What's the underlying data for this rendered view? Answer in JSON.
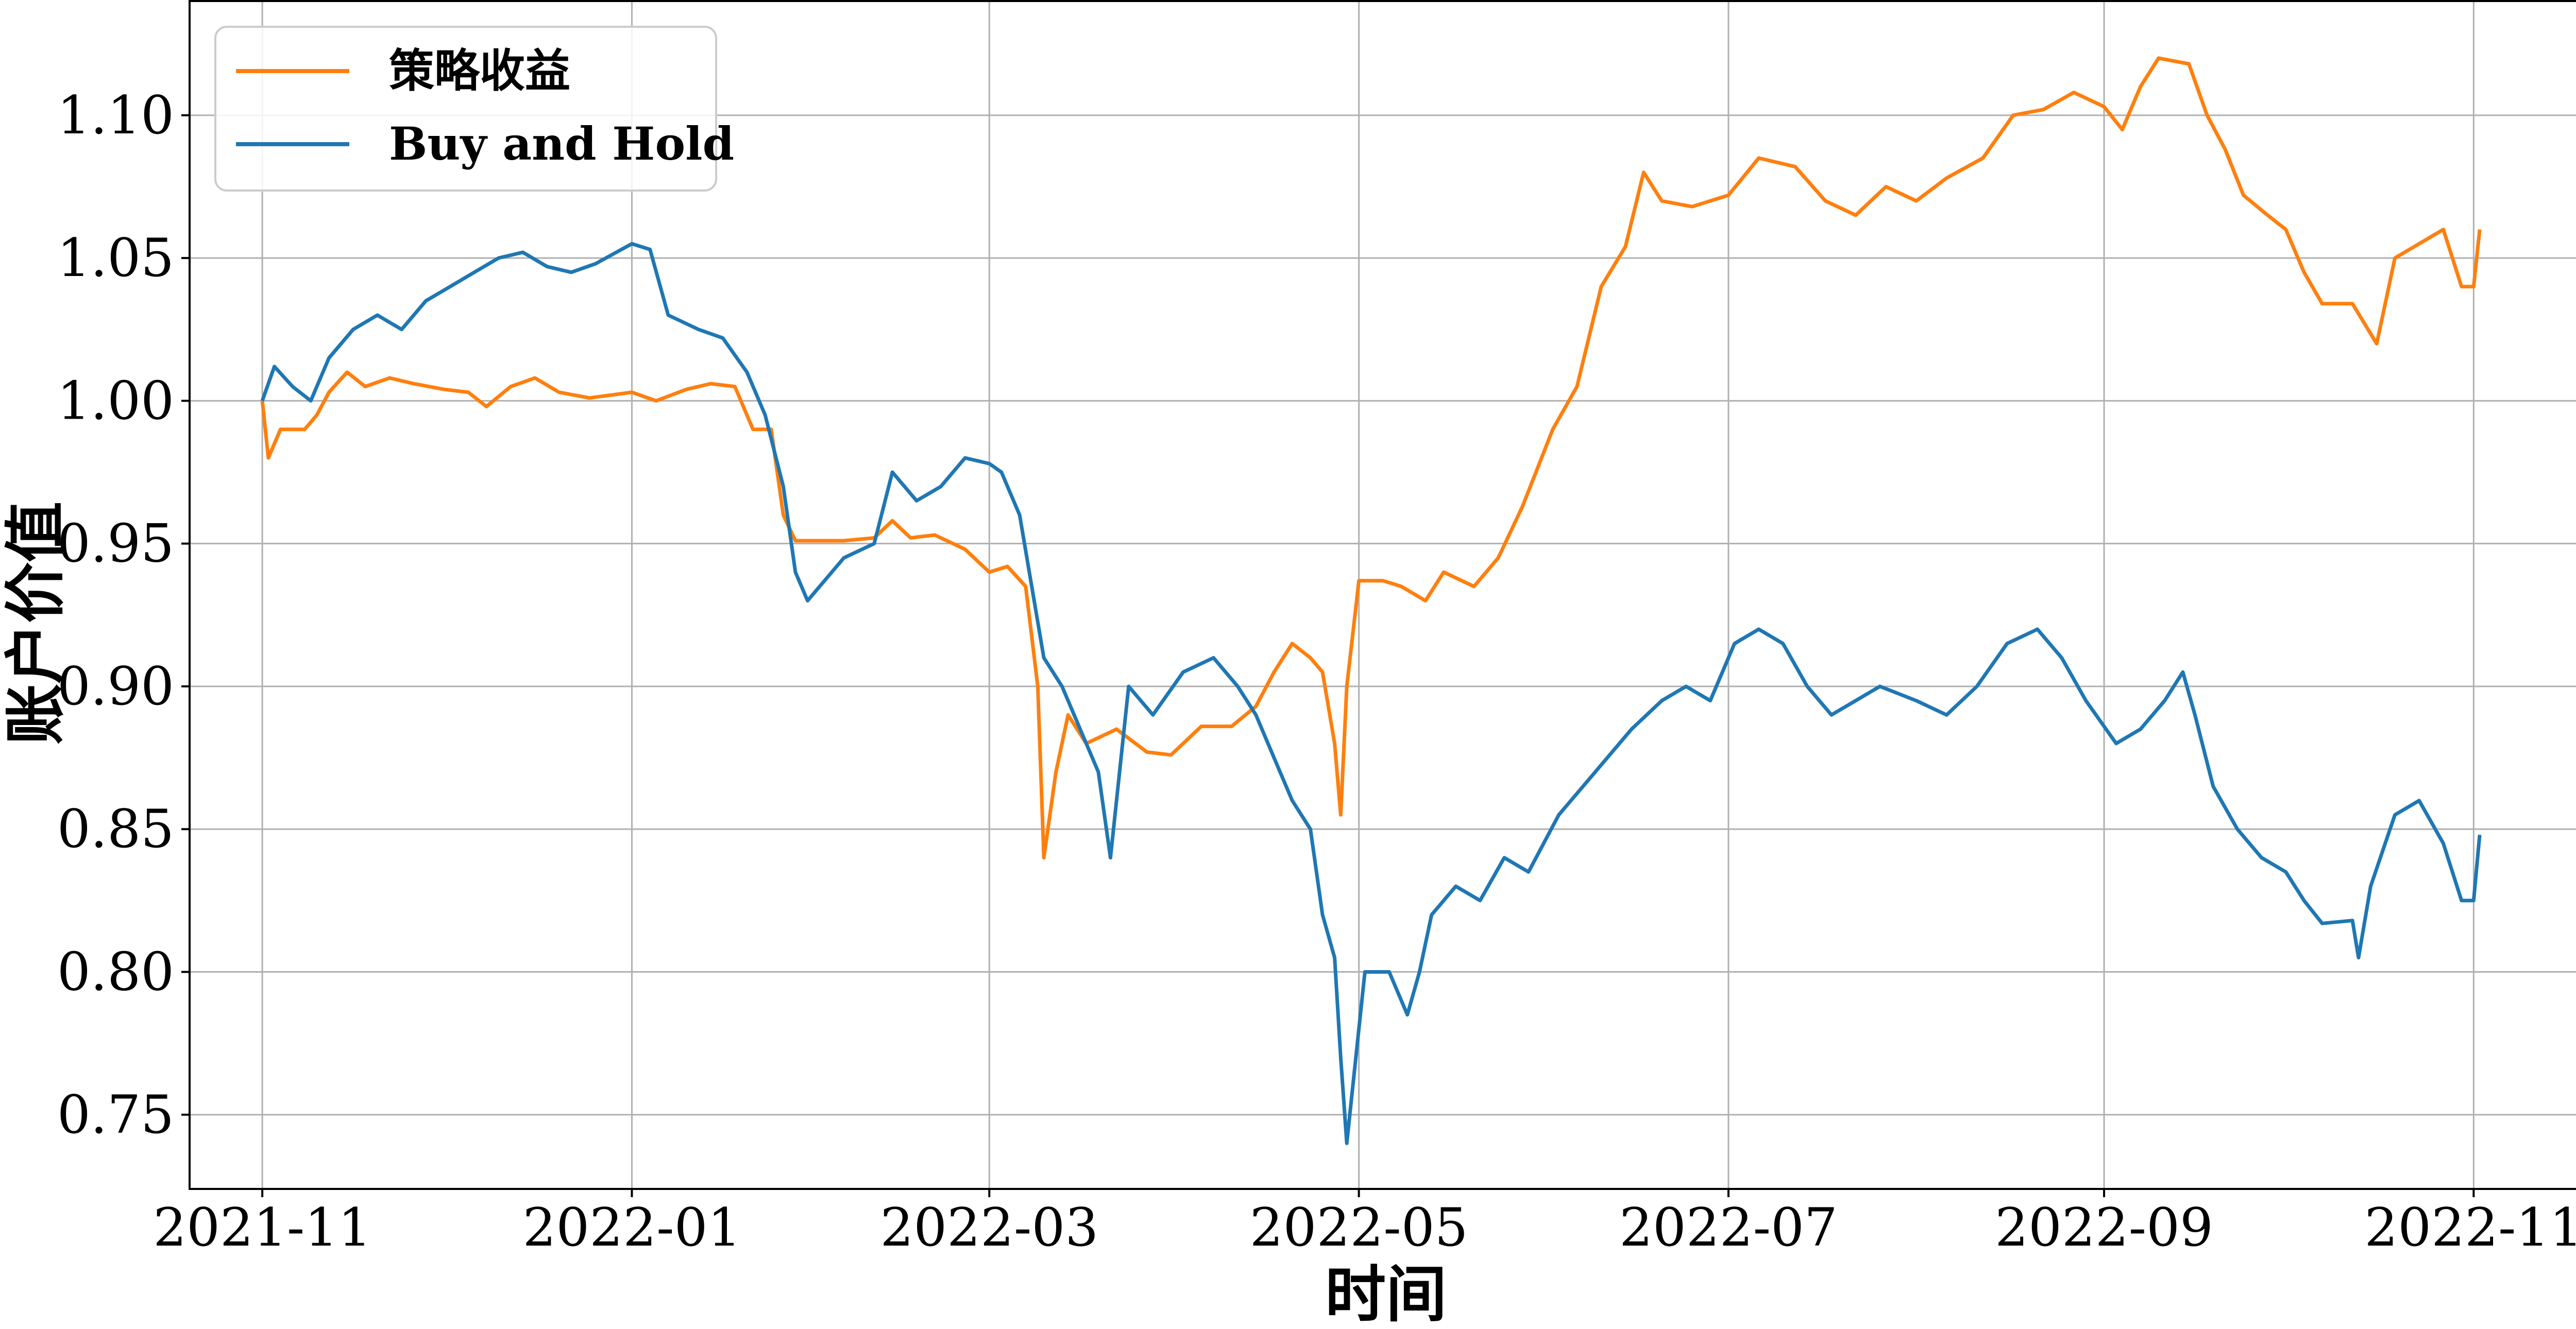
{
  "chart_data": {
    "type": "line",
    "xlabel": "时间",
    "ylabel": "账户价值",
    "x_ticks": [
      "2021-11",
      "2022-01",
      "2022-03",
      "2022-05",
      "2022-07",
      "2022-09",
      "2022-11"
    ],
    "y_ticks": [
      "0.75",
      "0.80",
      "0.85",
      "0.90",
      "0.95",
      "1.00",
      "1.05",
      "1.10"
    ],
    "xlim": [
      "2021-10-20",
      "2022-11-19"
    ],
    "ylim": [
      0.724,
      1.14
    ],
    "grid": true,
    "legend_position": "top-left",
    "series": [
      {
        "name": "策略收益",
        "color": "#ff7f0e",
        "points": [
          [
            "2021-11-01",
            1.0
          ],
          [
            "2021-11-02",
            0.98
          ],
          [
            "2021-11-04",
            0.99
          ],
          [
            "2021-11-08",
            0.99
          ],
          [
            "2021-11-10",
            0.995
          ],
          [
            "2021-11-12",
            1.003
          ],
          [
            "2021-11-15",
            1.01
          ],
          [
            "2021-11-18",
            1.005
          ],
          [
            "2021-11-22",
            1.008
          ],
          [
            "2021-11-26",
            1.006
          ],
          [
            "2021-12-01",
            1.004
          ],
          [
            "2021-12-05",
            1.003
          ],
          [
            "2021-12-08",
            0.998
          ],
          [
            "2021-12-12",
            1.005
          ],
          [
            "2021-12-16",
            1.008
          ],
          [
            "2021-12-20",
            1.003
          ],
          [
            "2021-12-25",
            1.001
          ],
          [
            "2022-01-01",
            1.003
          ],
          [
            "2022-01-05",
            1.0
          ],
          [
            "2022-01-10",
            1.004
          ],
          [
            "2022-01-14",
            1.006
          ],
          [
            "2022-01-18",
            1.005
          ],
          [
            "2022-01-21",
            0.99
          ],
          [
            "2022-01-24",
            0.99
          ],
          [
            "2022-01-26",
            0.96
          ],
          [
            "2022-01-28",
            0.951
          ],
          [
            "2022-02-05",
            0.951
          ],
          [
            "2022-02-10",
            0.952
          ],
          [
            "2022-02-13",
            0.958
          ],
          [
            "2022-02-16",
            0.952
          ],
          [
            "2022-02-20",
            0.953
          ],
          [
            "2022-02-25",
            0.948
          ],
          [
            "2022-03-01",
            0.94
          ],
          [
            "2022-03-04",
            0.942
          ],
          [
            "2022-03-07",
            0.935
          ],
          [
            "2022-03-09",
            0.9
          ],
          [
            "2022-03-10",
            0.84
          ],
          [
            "2022-03-12",
            0.87
          ],
          [
            "2022-03-14",
            0.89
          ],
          [
            "2022-03-17",
            0.88
          ],
          [
            "2022-03-22",
            0.885
          ],
          [
            "2022-03-27",
            0.877
          ],
          [
            "2022-03-31",
            0.876
          ],
          [
            "2022-04-05",
            0.886
          ],
          [
            "2022-04-10",
            0.886
          ],
          [
            "2022-04-14",
            0.893
          ],
          [
            "2022-04-17",
            0.905
          ],
          [
            "2022-04-20",
            0.915
          ],
          [
            "2022-04-23",
            0.91
          ],
          [
            "2022-04-25",
            0.905
          ],
          [
            "2022-04-27",
            0.88
          ],
          [
            "2022-04-28",
            0.855
          ],
          [
            "2022-04-29",
            0.9
          ],
          [
            "2022-05-01",
            0.937
          ],
          [
            "2022-05-05",
            0.937
          ],
          [
            "2022-05-08",
            0.935
          ],
          [
            "2022-05-12",
            0.93
          ],
          [
            "2022-05-15",
            0.94
          ],
          [
            "2022-05-20",
            0.935
          ],
          [
            "2022-05-24",
            0.945
          ],
          [
            "2022-05-28",
            0.963
          ],
          [
            "2022-06-02",
            0.99
          ],
          [
            "2022-06-06",
            1.005
          ],
          [
            "2022-06-10",
            1.04
          ],
          [
            "2022-06-14",
            1.054
          ],
          [
            "2022-06-17",
            1.08
          ],
          [
            "2022-06-20",
            1.07
          ],
          [
            "2022-06-25",
            1.068
          ],
          [
            "2022-07-01",
            1.072
          ],
          [
            "2022-07-06",
            1.085
          ],
          [
            "2022-07-12",
            1.082
          ],
          [
            "2022-07-17",
            1.07
          ],
          [
            "2022-07-22",
            1.065
          ],
          [
            "2022-07-27",
            1.075
          ],
          [
            "2022-08-01",
            1.07
          ],
          [
            "2022-08-06",
            1.078
          ],
          [
            "2022-08-12",
            1.085
          ],
          [
            "2022-08-17",
            1.1
          ],
          [
            "2022-08-22",
            1.102
          ],
          [
            "2022-08-27",
            1.108
          ],
          [
            "2022-09-01",
            1.103
          ],
          [
            "2022-09-04",
            1.095
          ],
          [
            "2022-09-07",
            1.11
          ],
          [
            "2022-09-10",
            1.12
          ],
          [
            "2022-09-15",
            1.118
          ],
          [
            "2022-09-18",
            1.1
          ],
          [
            "2022-09-21",
            1.088
          ],
          [
            "2022-09-24",
            1.072
          ],
          [
            "2022-09-28",
            1.065
          ],
          [
            "2022-10-01",
            1.06
          ],
          [
            "2022-10-04",
            1.045
          ],
          [
            "2022-10-07",
            1.034
          ],
          [
            "2022-10-12",
            1.034
          ],
          [
            "2022-10-16",
            1.02
          ],
          [
            "2022-10-19",
            1.05
          ],
          [
            "2022-10-23",
            1.055
          ],
          [
            "2022-10-27",
            1.06
          ],
          [
            "2022-10-30",
            1.04
          ],
          [
            "2022-11-01",
            1.04
          ],
          [
            "2022-11-02",
            1.06
          ]
        ]
      },
      {
        "name": "Buy and Hold",
        "color": "#1f77b4",
        "points": [
          [
            "2021-11-01",
            1.0
          ],
          [
            "2021-11-03",
            1.012
          ],
          [
            "2021-11-06",
            1.005
          ],
          [
            "2021-11-09",
            1.0
          ],
          [
            "2021-11-12",
            1.015
          ],
          [
            "2021-11-16",
            1.025
          ],
          [
            "2021-11-20",
            1.03
          ],
          [
            "2021-11-24",
            1.025
          ],
          [
            "2021-11-28",
            1.035
          ],
          [
            "2021-12-02",
            1.04
          ],
          [
            "2021-12-06",
            1.045
          ],
          [
            "2021-12-10",
            1.05
          ],
          [
            "2021-12-14",
            1.052
          ],
          [
            "2021-12-18",
            1.047
          ],
          [
            "2021-12-22",
            1.045
          ],
          [
            "2021-12-26",
            1.048
          ],
          [
            "2022-01-01",
            1.055
          ],
          [
            "2022-01-04",
            1.053
          ],
          [
            "2022-01-07",
            1.03
          ],
          [
            "2022-01-12",
            1.025
          ],
          [
            "2022-01-16",
            1.022
          ],
          [
            "2022-01-20",
            1.01
          ],
          [
            "2022-01-23",
            0.995
          ],
          [
            "2022-01-26",
            0.97
          ],
          [
            "2022-01-28",
            0.94
          ],
          [
            "2022-01-30",
            0.93
          ],
          [
            "2022-02-05",
            0.945
          ],
          [
            "2022-02-10",
            0.95
          ],
          [
            "2022-02-13",
            0.975
          ],
          [
            "2022-02-17",
            0.965
          ],
          [
            "2022-02-21",
            0.97
          ],
          [
            "2022-02-25",
            0.98
          ],
          [
            "2022-03-01",
            0.978
          ],
          [
            "2022-03-03",
            0.975
          ],
          [
            "2022-03-06",
            0.96
          ],
          [
            "2022-03-08",
            0.935
          ],
          [
            "2022-03-10",
            0.91
          ],
          [
            "2022-03-13",
            0.9
          ],
          [
            "2022-03-16",
            0.885
          ],
          [
            "2022-03-19",
            0.87
          ],
          [
            "2022-03-21",
            0.84
          ],
          [
            "2022-03-24",
            0.9
          ],
          [
            "2022-03-28",
            0.89
          ],
          [
            "2022-04-02",
            0.905
          ],
          [
            "2022-04-07",
            0.91
          ],
          [
            "2022-04-11",
            0.9
          ],
          [
            "2022-04-14",
            0.89
          ],
          [
            "2022-04-17",
            0.875
          ],
          [
            "2022-04-20",
            0.86
          ],
          [
            "2022-04-23",
            0.85
          ],
          [
            "2022-04-25",
            0.82
          ],
          [
            "2022-04-27",
            0.805
          ],
          [
            "2022-04-28",
            0.77
          ],
          [
            "2022-04-29",
            0.74
          ],
          [
            "2022-04-30",
            0.76
          ],
          [
            "2022-05-02",
            0.8
          ],
          [
            "2022-05-06",
            0.8
          ],
          [
            "2022-05-09",
            0.785
          ],
          [
            "2022-05-11",
            0.8
          ],
          [
            "2022-05-13",
            0.82
          ],
          [
            "2022-05-17",
            0.83
          ],
          [
            "2022-05-21",
            0.825
          ],
          [
            "2022-05-25",
            0.84
          ],
          [
            "2022-05-29",
            0.835
          ],
          [
            "2022-06-03",
            0.855
          ],
          [
            "2022-06-07",
            0.865
          ],
          [
            "2022-06-11",
            0.875
          ],
          [
            "2022-06-15",
            0.885
          ],
          [
            "2022-06-20",
            0.895
          ],
          [
            "2022-06-24",
            0.9
          ],
          [
            "2022-06-28",
            0.895
          ],
          [
            "2022-07-02",
            0.915
          ],
          [
            "2022-07-06",
            0.92
          ],
          [
            "2022-07-10",
            0.915
          ],
          [
            "2022-07-14",
            0.9
          ],
          [
            "2022-07-18",
            0.89
          ],
          [
            "2022-07-22",
            0.895
          ],
          [
            "2022-07-26",
            0.9
          ],
          [
            "2022-08-01",
            0.895
          ],
          [
            "2022-08-06",
            0.89
          ],
          [
            "2022-08-11",
            0.9
          ],
          [
            "2022-08-16",
            0.915
          ],
          [
            "2022-08-21",
            0.92
          ],
          [
            "2022-08-25",
            0.91
          ],
          [
            "2022-08-29",
            0.895
          ],
          [
            "2022-09-03",
            0.88
          ],
          [
            "2022-09-07",
            0.885
          ],
          [
            "2022-09-11",
            0.895
          ],
          [
            "2022-09-14",
            0.905
          ],
          [
            "2022-09-16",
            0.89
          ],
          [
            "2022-09-19",
            0.865
          ],
          [
            "2022-09-23",
            0.85
          ],
          [
            "2022-09-27",
            0.84
          ],
          [
            "2022-10-01",
            0.835
          ],
          [
            "2022-10-04",
            0.825
          ],
          [
            "2022-10-07",
            0.817
          ],
          [
            "2022-10-12",
            0.818
          ],
          [
            "2022-10-13",
            0.805
          ],
          [
            "2022-10-15",
            0.83
          ],
          [
            "2022-10-19",
            0.855
          ],
          [
            "2022-10-23",
            0.86
          ],
          [
            "2022-10-27",
            0.845
          ],
          [
            "2022-10-30",
            0.825
          ],
          [
            "2022-11-01",
            0.825
          ],
          [
            "2022-11-02",
            0.848
          ]
        ]
      }
    ]
  }
}
